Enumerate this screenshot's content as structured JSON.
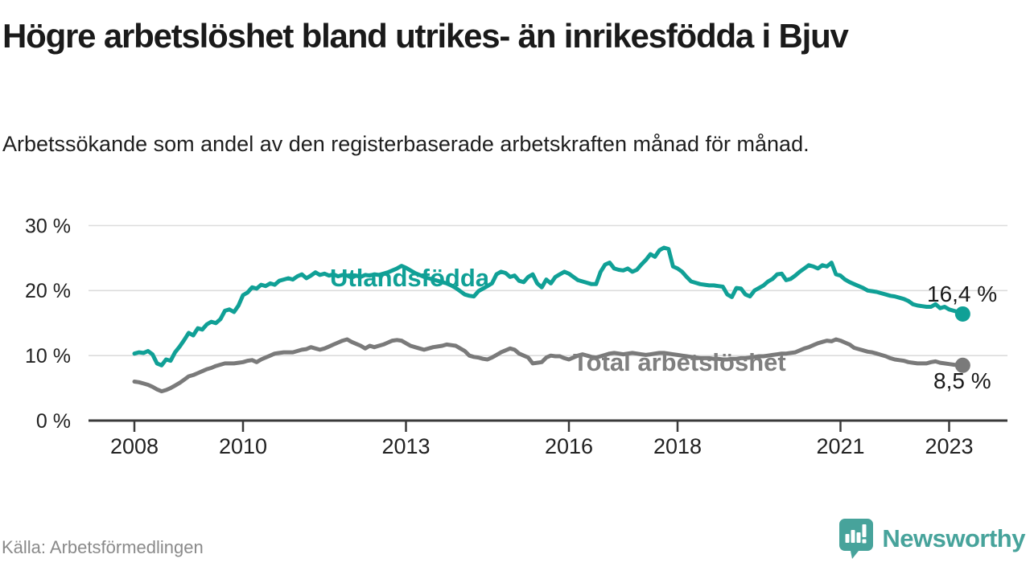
{
  "header": {
    "title": "Högre arbetslöshet bland utrikes- än inrikesfödda i Bjuv",
    "subtitle": "Arbetssökande som andel av den registerbaserade arbetskraften månad för månad."
  },
  "footer": {
    "source": "Källa: Arbetsförmedlingen",
    "brand": "Newsworthy"
  },
  "colors": {
    "teal": "#10a096",
    "gray": "#7a7a7a",
    "grid": "#dcdcdc",
    "axis": "#3a3a3a",
    "label_gray": "#7f7f7f",
    "logo": "#47a39b"
  },
  "chart_data": {
    "type": "line",
    "title": "Högre arbetslöshet bland utrikes- än inrikesfödda i Bjuv",
    "xlabel": "",
    "ylabel": "Arbetssökande som andel av den registerbaserade arbetskraften",
    "x_start_year": 2008,
    "x_frequency": "monthly",
    "n_points": 184,
    "ylim": [
      0,
      30
    ],
    "grid": true,
    "legend_position": "inline-labels",
    "yticks": [
      {
        "value": 0,
        "label": "0 %"
      },
      {
        "value": 10,
        "label": "10 %"
      },
      {
        "value": 20,
        "label": "20 %"
      },
      {
        "value": 30,
        "label": "30 %"
      }
    ],
    "xticks": [
      {
        "label": "2008",
        "year_offset": 0
      },
      {
        "label": "2010",
        "year_offset": 2
      },
      {
        "label": "2013",
        "year_offset": 5
      },
      {
        "label": "2016",
        "year_offset": 8
      },
      {
        "label": "2018",
        "year_offset": 10
      },
      {
        "label": "2021",
        "year_offset": 13
      },
      {
        "label": "2023",
        "year_offset": 15
      }
    ],
    "series": [
      {
        "name": "Utlandsfödda",
        "color": "#10a096",
        "end_label": "16,4 %",
        "end_value": 16.4,
        "values": [
          10.3,
          10.5,
          10.4,
          10.7,
          10.2,
          8.8,
          8.5,
          9.4,
          9.2,
          10.5,
          11.4,
          12.4,
          13.5,
          13.1,
          14.2,
          14.0,
          14.8,
          15.2,
          15.0,
          15.6,
          16.9,
          17.1,
          16.7,
          17.7,
          19.3,
          19.7,
          20.5,
          20.3,
          20.9,
          20.7,
          21.1,
          20.9,
          21.5,
          21.7,
          21.9,
          21.7,
          22.2,
          22.5,
          21.9,
          22.3,
          22.8,
          22.4,
          22.6,
          22.3,
          22.5,
          22.2,
          22.4,
          22.3,
          22.0,
          22.3,
          22.1,
          22.4,
          22.3,
          22.5,
          22.4,
          22.6,
          22.8,
          23.1,
          23.4,
          23.8,
          23.5,
          23.1,
          22.7,
          22.4,
          22.1,
          21.9,
          21.7,
          21.5,
          21.3,
          21.1,
          20.8,
          20.4,
          19.9,
          19.4,
          19.2,
          19.1,
          19.9,
          20.3,
          20.7,
          21.1,
          22.5,
          22.9,
          22.7,
          22.1,
          22.3,
          21.5,
          21.3,
          22.1,
          22.5,
          21.1,
          20.5,
          21.7,
          21.1,
          22.1,
          22.5,
          22.9,
          22.6,
          22.1,
          21.6,
          21.4,
          21.2,
          21.0,
          21.0,
          22.9,
          24.0,
          24.3,
          23.4,
          23.2,
          23.1,
          23.4,
          22.9,
          23.2,
          24.0,
          24.7,
          25.6,
          25.2,
          26.2,
          26.6,
          26.4,
          23.7,
          23.4,
          22.9,
          22.1,
          21.4,
          21.2,
          21.0,
          20.9,
          20.8,
          20.8,
          20.7,
          20.6,
          19.4,
          19.0,
          20.4,
          20.3,
          19.4,
          19.1,
          20.0,
          20.4,
          20.8,
          21.4,
          21.8,
          22.5,
          22.6,
          21.6,
          21.8,
          22.3,
          22.9,
          23.4,
          23.9,
          23.7,
          23.4,
          23.9,
          23.7,
          24.3,
          22.5,
          22.3,
          21.7,
          21.3,
          21.0,
          20.7,
          20.4,
          20.0,
          19.9,
          19.8,
          19.6,
          19.4,
          19.2,
          19.1,
          18.9,
          18.7,
          18.4,
          17.9,
          17.7,
          17.6,
          17.5,
          17.5,
          17.9,
          17.3,
          17.5,
          17.1,
          16.9,
          16.7,
          16.4
        ]
      },
      {
        "name": "Total arbetslöshet",
        "color": "#7a7a7a",
        "end_label": "8,5 %",
        "end_value": 8.5,
        "values": [
          6.0,
          5.9,
          5.7,
          5.5,
          5.2,
          4.8,
          4.5,
          4.7,
          5.0,
          5.4,
          5.8,
          6.3,
          6.8,
          7.0,
          7.3,
          7.6,
          7.9,
          8.1,
          8.4,
          8.6,
          8.8,
          8.8,
          8.8,
          8.9,
          9.0,
          9.2,
          9.3,
          9.0,
          9.4,
          9.7,
          10.0,
          10.3,
          10.4,
          10.5,
          10.5,
          10.5,
          10.7,
          10.9,
          11.0,
          11.3,
          11.1,
          10.9,
          11.1,
          11.4,
          11.7,
          12.0,
          12.3,
          12.5,
          12.1,
          11.8,
          11.5,
          11.1,
          11.5,
          11.3,
          11.5,
          11.7,
          12.0,
          12.3,
          12.4,
          12.3,
          11.9,
          11.5,
          11.3,
          11.1,
          10.9,
          11.1,
          11.3,
          11.4,
          11.5,
          11.7,
          11.6,
          11.5,
          11.1,
          10.7,
          10.0,
          9.8,
          9.7,
          9.5,
          9.4,
          9.7,
          10.1,
          10.5,
          10.8,
          11.1,
          10.9,
          10.3,
          10.0,
          9.7,
          8.8,
          8.9,
          9.0,
          9.7,
          10.0,
          9.9,
          9.9,
          9.6,
          9.4,
          9.7,
          10.0,
          10.2,
          10.0,
          9.8,
          9.7,
          9.9,
          10.1,
          10.3,
          10.4,
          10.3,
          10.2,
          10.3,
          10.4,
          10.3,
          10.2,
          10.1,
          10.2,
          10.3,
          10.4,
          10.4,
          10.3,
          10.2,
          10.1,
          10.0,
          9.9,
          9.8,
          9.7,
          9.6,
          9.6,
          9.6,
          9.5,
          9.5,
          9.4,
          9.4,
          9.5,
          9.5,
          9.6,
          9.6,
          9.7,
          9.8,
          9.9,
          9.9,
          10.0,
          10.1,
          10.2,
          10.3,
          10.3,
          10.4,
          10.5,
          10.8,
          11.1,
          11.3,
          11.6,
          11.9,
          12.1,
          12.3,
          12.2,
          12.5,
          12.3,
          12.0,
          11.7,
          11.2,
          11.0,
          10.8,
          10.6,
          10.5,
          10.3,
          10.1,
          9.9,
          9.6,
          9.4,
          9.3,
          9.2,
          9.0,
          8.9,
          8.8,
          8.8,
          8.8,
          9.0,
          9.1,
          8.9,
          8.8,
          8.7,
          8.6,
          8.5,
          8.5
        ]
      }
    ]
  }
}
